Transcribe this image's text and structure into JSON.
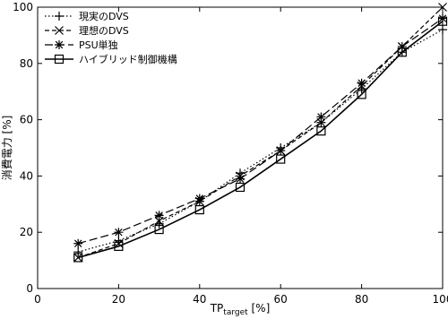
{
  "chart_data": {
    "type": "line",
    "title": "",
    "xlabel": {
      "main": "TP",
      "subscript": "target",
      "suffix": " [%]"
    },
    "ylabel": "消費電力 [%]",
    "xlim": [
      0,
      100
    ],
    "ylim": [
      0,
      100
    ],
    "xticks": [
      0,
      20,
      40,
      60,
      80,
      100
    ],
    "yticks": [
      0,
      20,
      40,
      60,
      80,
      100
    ],
    "x": [
      10,
      20,
      30,
      40,
      50,
      60,
      70,
      80,
      90,
      100
    ],
    "legend_position": "top-left",
    "grid": false,
    "series": [
      {
        "name": "現実のDVS",
        "marker": "plus",
        "dash": "dotted",
        "values": [
          13,
          17,
          23,
          31,
          41,
          50,
          59,
          71,
          84,
          92
        ]
      },
      {
        "name": "理想のDVS",
        "marker": "x",
        "dash": "dashed",
        "values": [
          11,
          16,
          24,
          31,
          40,
          49,
          59,
          72,
          86,
          100
        ]
      },
      {
        "name": "PSU単独",
        "marker": "asterisk",
        "dash": "longdash",
        "values": [
          16,
          20,
          26,
          32,
          39,
          49,
          61,
          73,
          86,
          96
        ]
      },
      {
        "name": "ハイブリッド制御機構",
        "marker": "square",
        "dash": "solid",
        "values": [
          11,
          15,
          21,
          28,
          36,
          46,
          56,
          69,
          84,
          95
        ]
      }
    ]
  }
}
